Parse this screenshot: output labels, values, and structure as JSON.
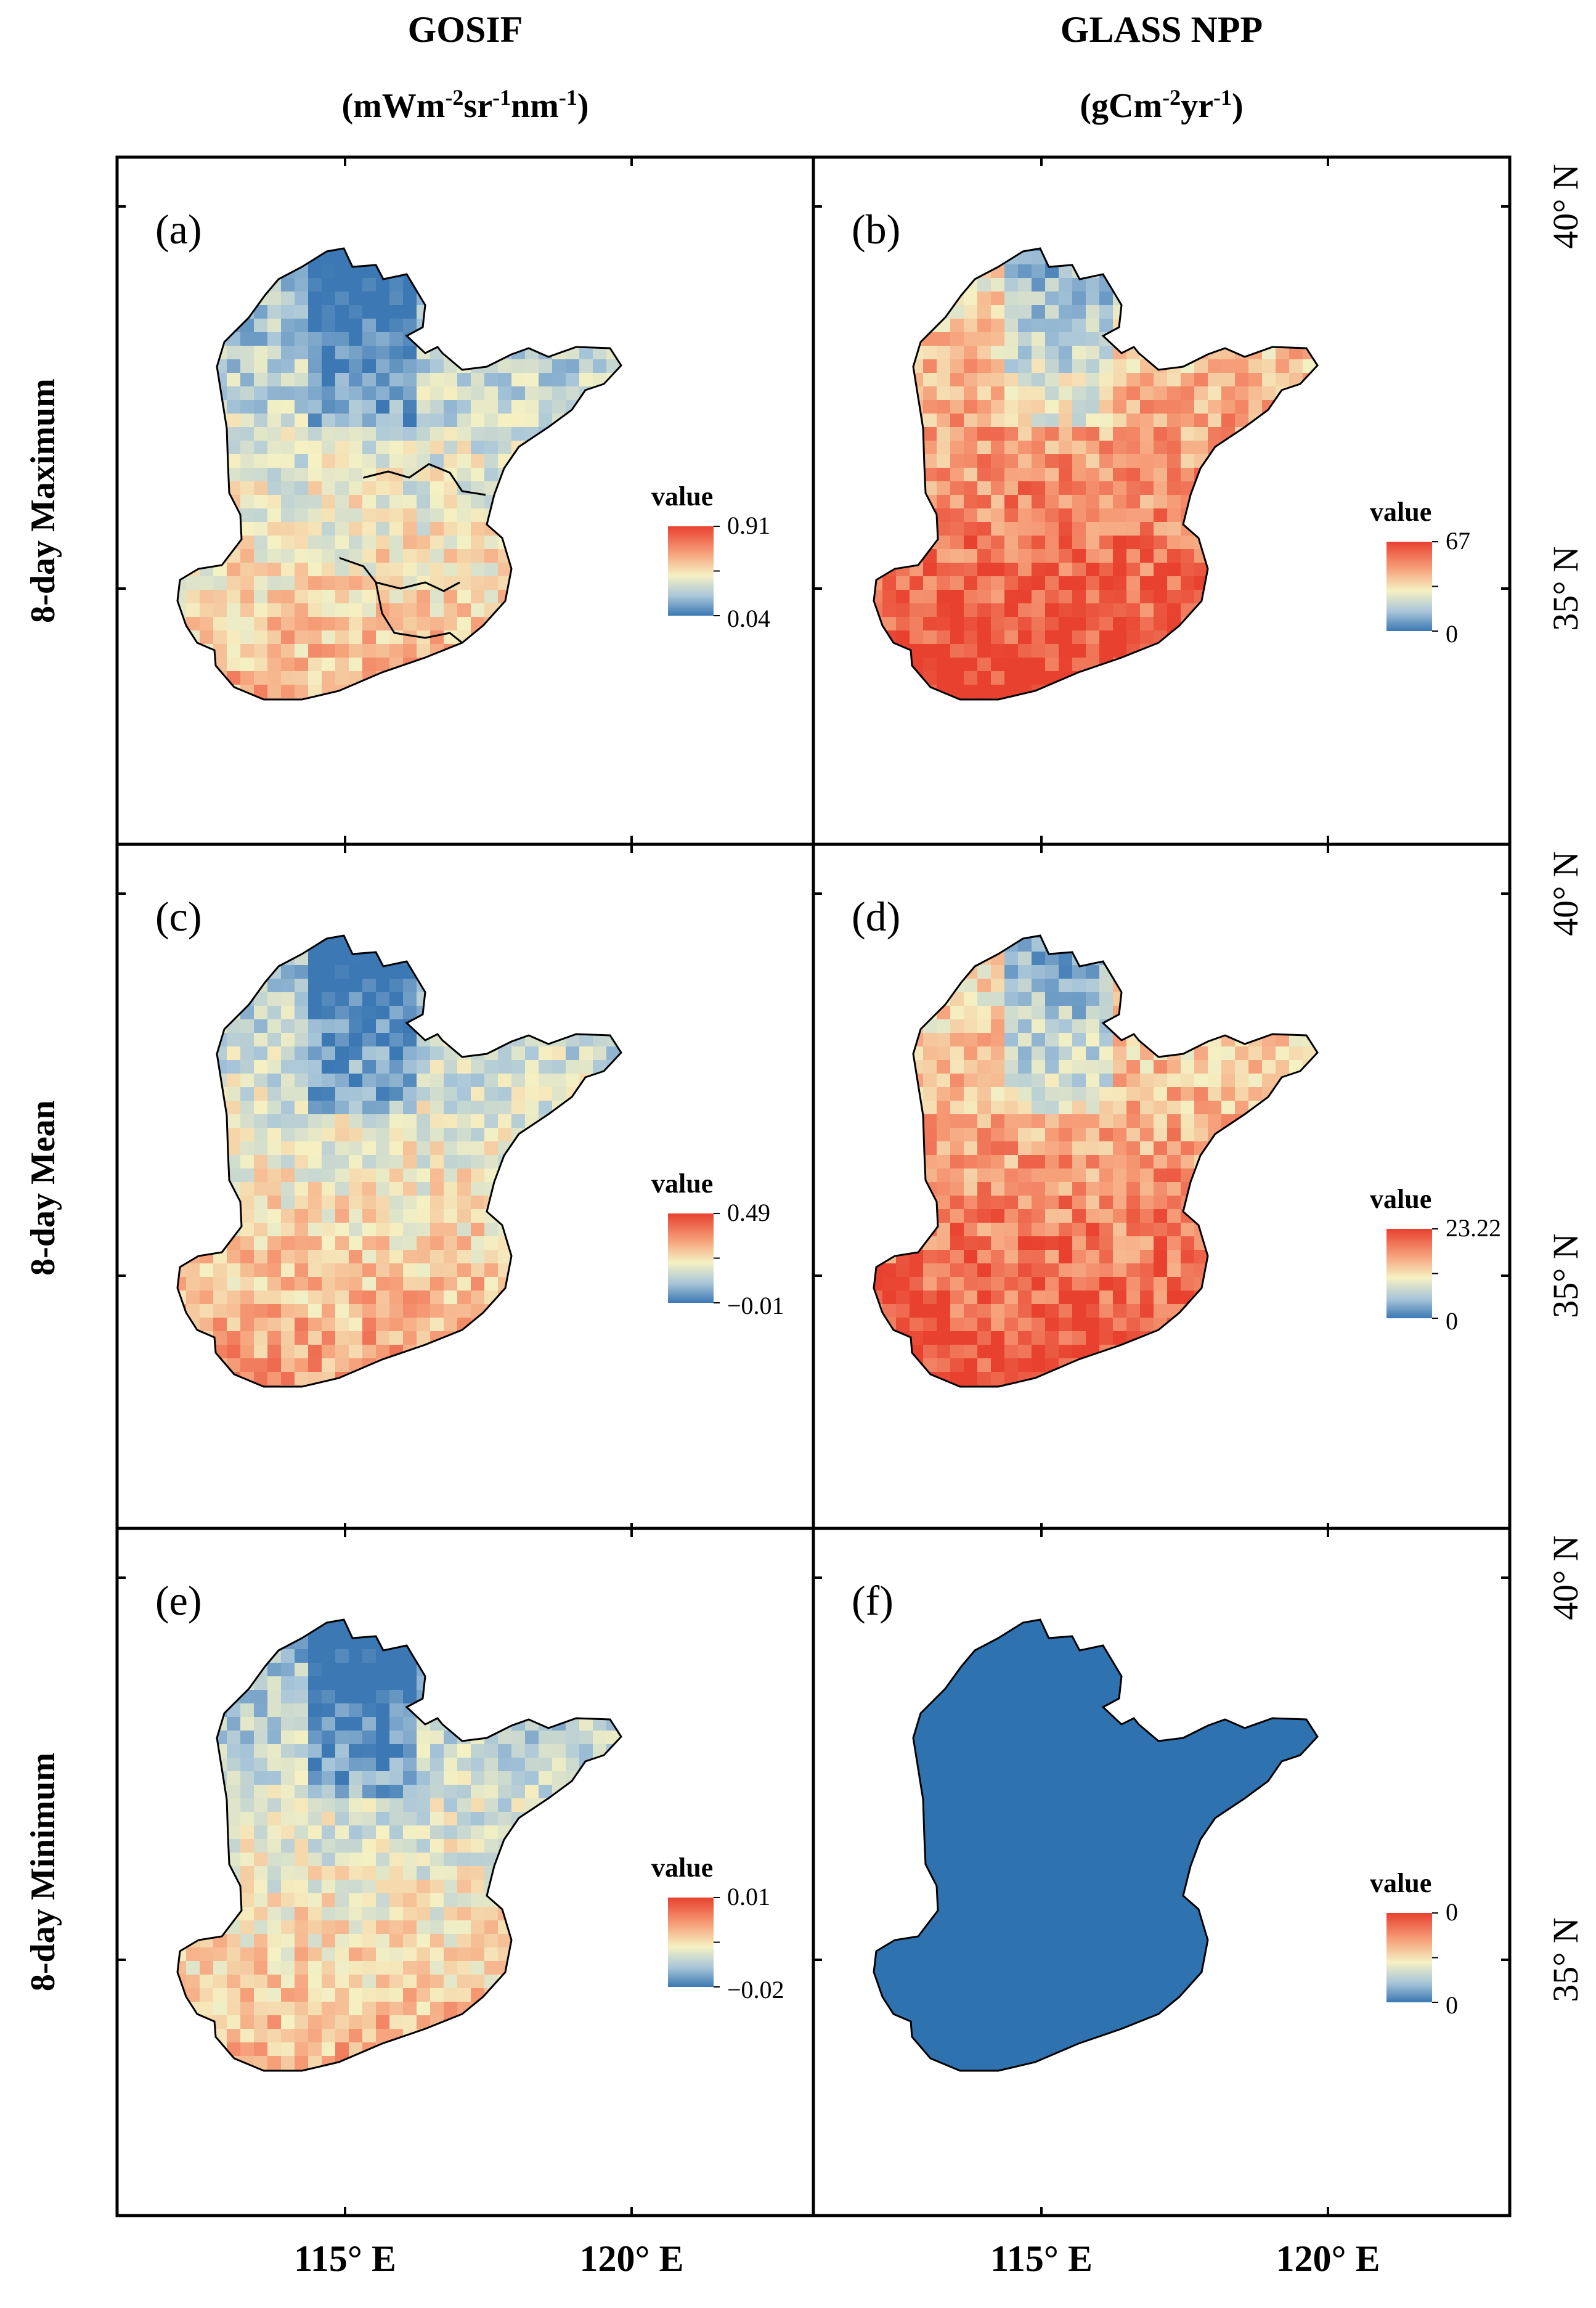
{
  "columns": [
    {
      "title": "GOSIF",
      "unit_base": "(mWm",
      "unit_parts": [
        [
          "-2",
          "sr"
        ],
        [
          "-1",
          "nm"
        ],
        [
          "-1",
          ")"
        ]
      ]
    },
    {
      "title": "GLASS NPP",
      "unit_base": "(gCm",
      "unit_parts": [
        [
          "-2",
          "yr"
        ],
        [
          "-1",
          ")"
        ]
      ]
    }
  ],
  "rows": [
    {
      "label": "8-day Maximum"
    },
    {
      "label": "8-day Mean"
    },
    {
      "label": "8-day Minimum"
    }
  ],
  "panels": [
    {
      "id": "(a)",
      "legend_title": "value",
      "legend_max": "0.91",
      "legend_min": "0.04",
      "mean_level": 0.45
    },
    {
      "id": "(b)",
      "legend_title": "value",
      "legend_max": "67",
      "legend_min": "0",
      "mean_level": 0.78
    },
    {
      "id": "(c)",
      "legend_title": "value",
      "legend_max": "0.49",
      "legend_min": "−0.01",
      "mean_level": 0.5
    },
    {
      "id": "(d)",
      "legend_title": "value",
      "legend_max": "23.22",
      "legend_min": "0",
      "mean_level": 0.75
    },
    {
      "id": "(e)",
      "legend_title": "value",
      "legend_max": "0.01",
      "legend_min": "−0.02",
      "mean_level": 0.45
    },
    {
      "id": "(f)",
      "legend_title": "value",
      "legend_max": "0",
      "legend_min": "0",
      "mean_level": 0.0
    }
  ],
  "axes": {
    "lon_ticks": [
      "115° E",
      "120° E"
    ],
    "lat_ticks": [
      "40° N",
      "35° N"
    ]
  },
  "colors": {
    "scale_top": "#e8412f",
    "scale_upper": "#f6a07a",
    "scale_mid": "#f5f1c3",
    "scale_lower": "#a9c6d9",
    "scale_bottom": "#3b78b4",
    "uniform_fill": "#2f72b0",
    "border": "#000000"
  }
}
